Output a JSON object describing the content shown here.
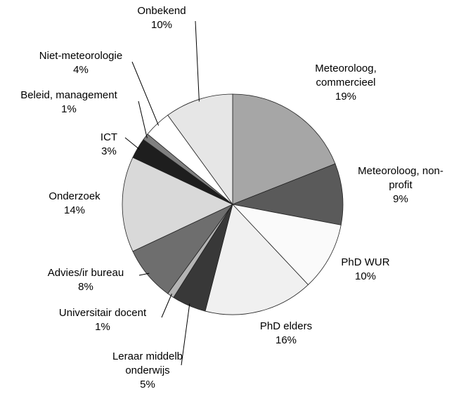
{
  "chart_data": {
    "type": "pie",
    "categories": [
      "Meteoroloog, commercieel",
      "Meteoroloog, non-profit",
      "PhD WUR",
      "PhD elders",
      "Leraar middelb onderwijs",
      "Universitair docent",
      "Advies/ir bureau",
      "Onderzoek",
      "ICT",
      "Beleid, management",
      "Niet-meteorologie",
      "Onbekend"
    ],
    "values": [
      19,
      9,
      10,
      16,
      5,
      1,
      8,
      14,
      3,
      1,
      4,
      10
    ],
    "value_labels": [
      "19%",
      "9%",
      "10%",
      "16%",
      "5%",
      "1%",
      "8%",
      "14%",
      "3%",
      "1%",
      "4%",
      "10%"
    ],
    "colors": [
      "#a6a6a6",
      "#5a5a5a",
      "#fafafa",
      "#f0f0f0",
      "#383838",
      "#b4b4b4",
      "#6e6e6e",
      "#d9d9d9",
      "#1e1e1e",
      "#808080",
      "#ffffff",
      "#e6e6e6"
    ]
  }
}
